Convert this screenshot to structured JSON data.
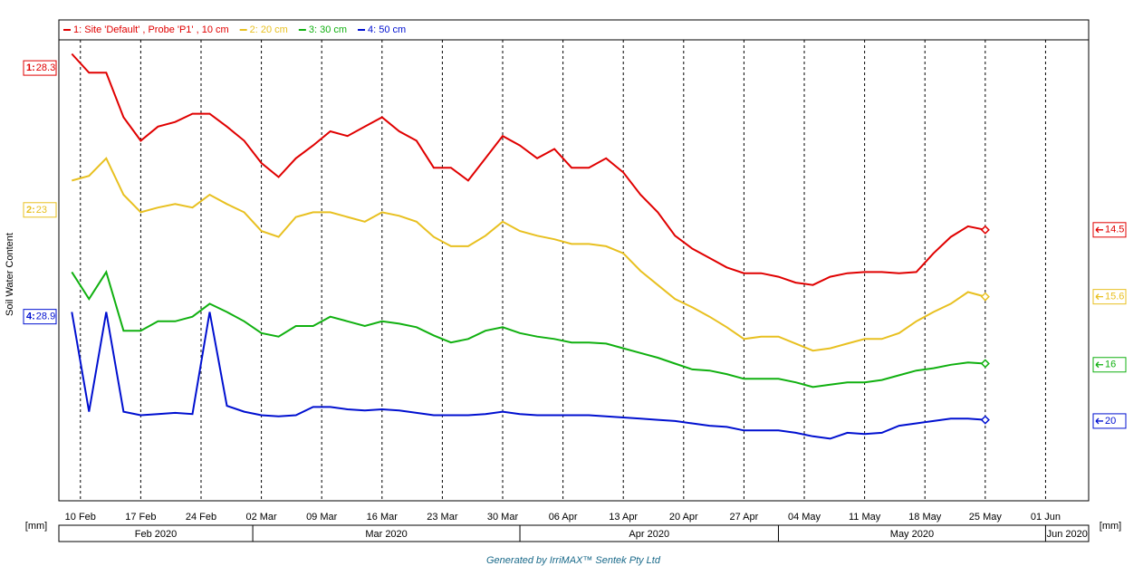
{
  "chart_data": {
    "type": "line",
    "legend": "top",
    "y_title": "Soil Water Content",
    "y_unit": "[mm]",
    "footer": "Generated by IrriMAX™ Sentek Pty Ltd",
    "xlim": [
      "2020-02-07T12:00",
      "2020-06-06"
    ],
    "xticks": [
      {
        "value": "2020-02-10",
        "label": "10 Feb"
      },
      {
        "value": "2020-02-17",
        "label": "17 Feb"
      },
      {
        "value": "2020-02-24",
        "label": "24 Feb"
      },
      {
        "value": "2020-03-02",
        "label": "02 Mar"
      },
      {
        "value": "2020-03-09",
        "label": "09 Mar"
      },
      {
        "value": "2020-03-16",
        "label": "16 Mar"
      },
      {
        "value": "2020-03-23",
        "label": "23 Mar"
      },
      {
        "value": "2020-03-30",
        "label": "30 Mar"
      },
      {
        "value": "2020-04-06",
        "label": "06 Apr"
      },
      {
        "value": "2020-04-13",
        "label": "13 Apr"
      },
      {
        "value": "2020-04-20",
        "label": "20 Apr"
      },
      {
        "value": "2020-04-27",
        "label": "27 Apr"
      },
      {
        "value": "2020-05-04",
        "label": "04 May"
      },
      {
        "value": "2020-05-11",
        "label": "11 May"
      },
      {
        "value": "2020-05-18",
        "label": "18 May"
      },
      {
        "value": "2020-05-25",
        "label": "25 May"
      },
      {
        "value": "2020-06-01",
        "label": "01 Jun"
      }
    ],
    "months": [
      {
        "value": "2020-02-01",
        "label": "Feb 2020"
      },
      {
        "value": "2020-03-01",
        "label": "Mar 2020"
      },
      {
        "value": "2020-04-01",
        "label": "Apr 2020"
      },
      {
        "value": "2020-05-01",
        "label": "May 2020"
      },
      {
        "value": "2020-06-01",
        "label": "Jun 2020"
      }
    ],
    "grid": true,
    "x": [
      "2020-02-09",
      "2020-02-11",
      "2020-02-13",
      "2020-02-15",
      "2020-02-17",
      "2020-02-19",
      "2020-02-21",
      "2020-02-23",
      "2020-02-25",
      "2020-02-27",
      "2020-02-29",
      "2020-03-02",
      "2020-03-04",
      "2020-03-06",
      "2020-03-08",
      "2020-03-10",
      "2020-03-12",
      "2020-03-14",
      "2020-03-16",
      "2020-03-18",
      "2020-03-20",
      "2020-03-22",
      "2020-03-24",
      "2020-03-26",
      "2020-03-28",
      "2020-03-30",
      "2020-04-01",
      "2020-04-03",
      "2020-04-05",
      "2020-04-07",
      "2020-04-09",
      "2020-04-11",
      "2020-04-13",
      "2020-04-15",
      "2020-04-17",
      "2020-04-19",
      "2020-04-21",
      "2020-04-23",
      "2020-04-25",
      "2020-04-27",
      "2020-04-29",
      "2020-05-01",
      "2020-05-03",
      "2020-05-05",
      "2020-05-07",
      "2020-05-09",
      "2020-05-11",
      "2020-05-13",
      "2020-05-15",
      "2020-05-17",
      "2020-05-19",
      "2020-05-21",
      "2020-05-23",
      "2020-05-25"
    ],
    "series": [
      {
        "name": "1: Site 'Default' , Probe 'P1' , 10 cm",
        "marker": "1:",
        "color": "#e00000",
        "ylim": [
          -8.6,
          30.7
        ],
        "start_value": 28.3,
        "end_value": 14.5,
        "values": [
          29.5,
          27.9,
          27.9,
          24.1,
          22.1,
          23.3,
          23.7,
          24.4,
          24.4,
          23.3,
          22.1,
          20.2,
          19.0,
          20.6,
          21.7,
          22.9,
          22.5,
          23.3,
          24.1,
          22.9,
          22.1,
          19.8,
          19.8,
          18.7,
          20.6,
          22.5,
          21.7,
          20.6,
          21.4,
          19.8,
          19.8,
          20.6,
          19.4,
          17.5,
          16.0,
          14.0,
          12.9,
          12.1,
          11.3,
          10.8,
          10.8,
          10.5,
          10.0,
          9.8,
          10.5,
          10.8,
          10.9,
          10.9,
          10.8,
          10.9,
          12.5,
          13.9,
          14.8,
          14.5
        ]
      },
      {
        "name": "2: 20 cm",
        "marker": "2:",
        "color": "#e8c020",
        "ylim": [
          -1.8,
          37.5
        ],
        "start_value": 23.0,
        "end_value": 15.6,
        "values": [
          25.5,
          25.9,
          27.4,
          24.3,
          22.8,
          23.2,
          23.5,
          23.2,
          24.3,
          23.5,
          22.8,
          21.2,
          20.7,
          22.4,
          22.8,
          22.8,
          22.4,
          22.0,
          22.8,
          22.5,
          22.0,
          20.7,
          19.9,
          19.9,
          20.8,
          22.0,
          21.2,
          20.8,
          20.5,
          20.1,
          20.1,
          19.9,
          19.3,
          17.8,
          16.6,
          15.4,
          14.7,
          13.9,
          13.0,
          12.0,
          12.2,
          12.2,
          11.6,
          11.0,
          11.2,
          11.6,
          12.0,
          12.0,
          12.5,
          13.5,
          14.3,
          15.0,
          16.0,
          15.6
        ]
      },
      {
        "name": "3: 30 cm",
        "marker": "3:",
        "color": "#10b010",
        "ylim": [
          4.4,
          43.7
        ],
        "end_value": 16.0,
        "values": [
          23.9,
          21.6,
          23.9,
          18.9,
          18.9,
          19.7,
          19.7,
          20.1,
          21.2,
          20.5,
          19.7,
          18.7,
          18.4,
          19.3,
          19.3,
          20.1,
          19.7,
          19.3,
          19.7,
          19.5,
          19.2,
          18.5,
          17.9,
          18.2,
          18.9,
          19.2,
          18.7,
          18.4,
          18.2,
          17.9,
          17.9,
          17.8,
          17.4,
          17.0,
          16.6,
          16.1,
          15.6,
          15.5,
          15.2,
          14.8,
          14.8,
          14.8,
          14.5,
          14.1,
          14.3,
          14.5,
          14.5,
          14.7,
          15.1,
          15.5,
          15.7,
          16.0,
          16.2,
          16.1
        ]
      },
      {
        "name": "4: 50 cm",
        "marker": "4:",
        "color": "#0010d0",
        "ylim": [
          13.2,
          52.5
        ],
        "start_value": 28.9,
        "end_value": 20.0,
        "values": [
          29.3,
          20.8,
          29.3,
          20.8,
          20.5,
          20.6,
          20.7,
          20.6,
          29.3,
          21.3,
          20.8,
          20.5,
          20.4,
          20.5,
          21.2,
          21.2,
          21.0,
          20.9,
          21.0,
          20.9,
          20.7,
          20.5,
          20.5,
          20.5,
          20.6,
          20.8,
          20.6,
          20.5,
          20.5,
          20.5,
          20.5,
          20.4,
          20.3,
          20.2,
          20.1,
          20.0,
          19.8,
          19.6,
          19.5,
          19.2,
          19.2,
          19.2,
          19.0,
          18.7,
          18.5,
          19.0,
          18.9,
          19.0,
          19.6,
          19.8,
          20.0,
          20.2,
          20.2,
          20.1
        ]
      }
    ]
  }
}
